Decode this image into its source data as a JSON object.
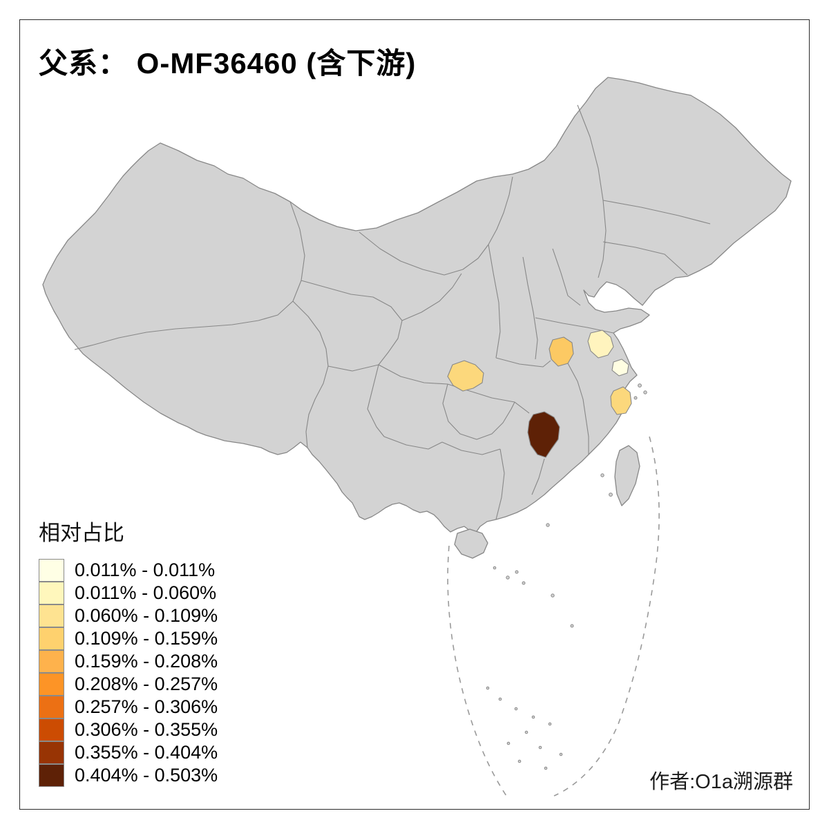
{
  "title": "父系： O-MF36460 (含下游)",
  "credit": "作者:O1a溯源群",
  "legend": {
    "title": "相对占比",
    "items": [
      {
        "label": "0.011% - 0.011%",
        "color": "#FFFFE5"
      },
      {
        "label": "0.011% - 0.060%",
        "color": "#FFF7BC"
      },
      {
        "label": "0.060% - 0.109%",
        "color": "#FEE391"
      },
      {
        "label": "0.109% - 0.159%",
        "color": "#FED16E"
      },
      {
        "label": "0.159% - 0.208%",
        "color": "#FEB24C"
      },
      {
        "label": "0.208% - 0.257%",
        "color": "#FD9426"
      },
      {
        "label": "0.257% - 0.306%",
        "color": "#EC7014"
      },
      {
        "label": "0.306% - 0.355%",
        "color": "#CC4C02"
      },
      {
        "label": "0.355% - 0.404%",
        "color": "#983404"
      },
      {
        "label": "0.404% - 0.503%",
        "color": "#5E2106"
      }
    ]
  },
  "map": {
    "land_color": "#d3d3d3",
    "boundary_color": "#878787",
    "sea_dash_color": "#9a9a9a",
    "regions": [
      {
        "id": "chongqing-area",
        "color": "#FCD87C",
        "legend_class": "0.109% - 0.159%"
      },
      {
        "id": "anhui-central-area",
        "color": "#FCC963",
        "legend_class": "0.109% - 0.159%"
      },
      {
        "id": "jiangsu-central-area",
        "color": "#FFF4BE",
        "legend_class": "0.011% - 0.060%"
      },
      {
        "id": "shanghai-area",
        "color": "#FFFEE2",
        "legend_class": "0.011% - 0.011%"
      },
      {
        "id": "zhejiang-east-area",
        "color": "#FCD87C",
        "legend_class": "0.109% - 0.159%"
      },
      {
        "id": "hunan-east-area",
        "color": "#5E2106",
        "legend_class": "0.404% - 0.503%"
      }
    ]
  },
  "chart_data": {
    "type": "choropleth",
    "title": "父系： O-MF36460 (含下游)",
    "legend_title": "相对占比",
    "legend_position": "bottom-left",
    "base_map": "China provinces (gray, unshaded = no data)",
    "classes": [
      {
        "range": "0.011% - 0.011%",
        "color": "#FFFFE5"
      },
      {
        "range": "0.011% - 0.060%",
        "color": "#FFF7BC"
      },
      {
        "range": "0.060% - 0.109%",
        "color": "#FEE391"
      },
      {
        "range": "0.109% - 0.159%",
        "color": "#FED16E"
      },
      {
        "range": "0.159% - 0.208%",
        "color": "#FEB24C"
      },
      {
        "range": "0.208% - 0.257%",
        "color": "#FD9426"
      },
      {
        "range": "0.257% - 0.306%",
        "color": "#EC7014"
      },
      {
        "range": "0.306% - 0.355%",
        "color": "#CC4C02"
      },
      {
        "range": "0.355% - 0.404%",
        "color": "#983404"
      },
      {
        "range": "0.404% - 0.503%",
        "color": "#5E2106"
      }
    ],
    "shaded_regions": [
      {
        "id": "chongqing-area",
        "legend_class": "0.109% - 0.159%"
      },
      {
        "id": "anhui-central-area",
        "legend_class": "0.109% - 0.159%"
      },
      {
        "id": "jiangsu-central-area",
        "legend_class": "0.011% - 0.060%"
      },
      {
        "id": "shanghai-area",
        "legend_class": "0.011% - 0.011%"
      },
      {
        "id": "zhejiang-east-area",
        "legend_class": "0.109% - 0.159%"
      },
      {
        "id": "hunan-east-area",
        "legend_class": "0.404% - 0.503%"
      }
    ]
  }
}
